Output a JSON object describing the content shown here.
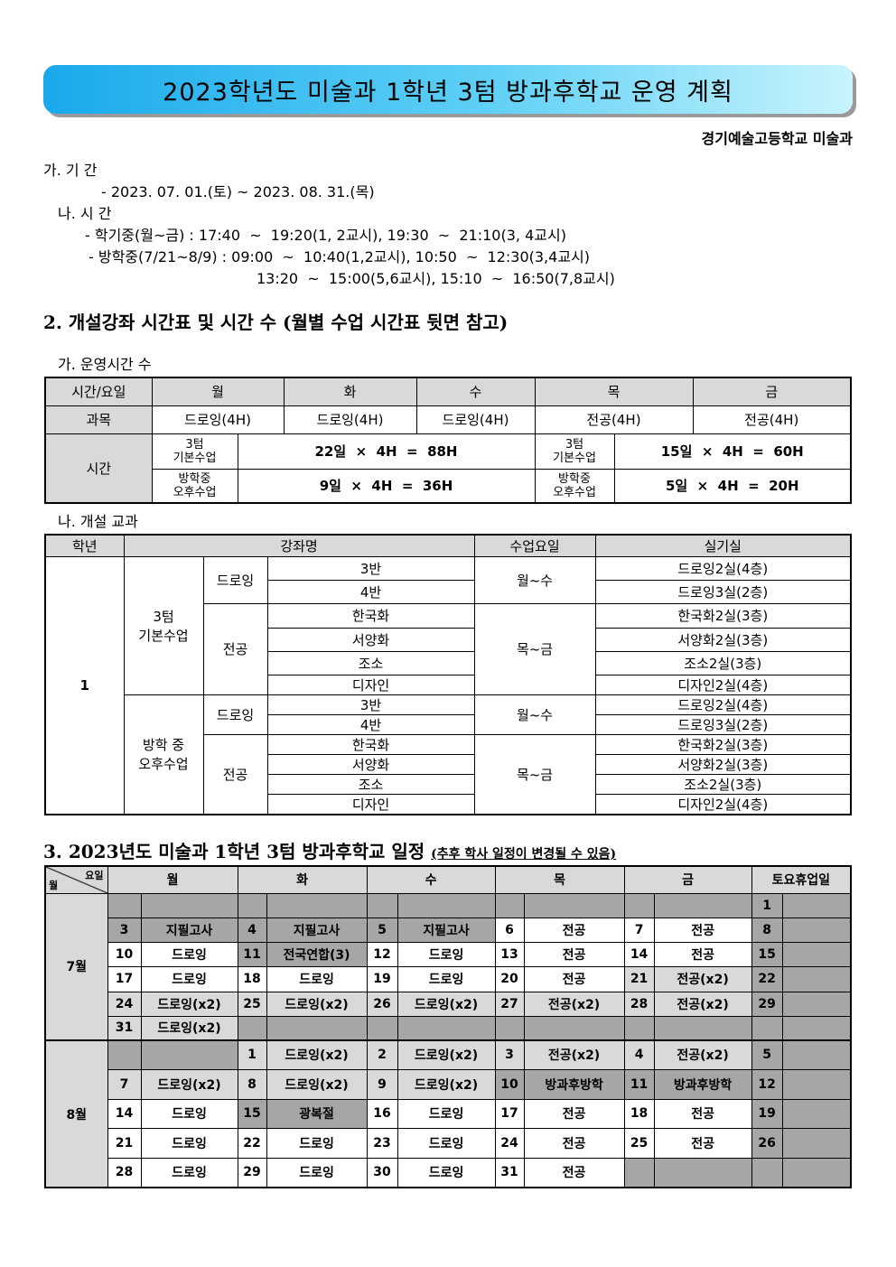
{
  "title": "2023학년도 미술과 1학년 3텀 방과후학교 운영 계획",
  "school": "경기예술고등학교 미술과",
  "sec1": {
    "period_head": "가. 기 간",
    "period": "- 2023. 07. 01.(토) ~ 2023. 08. 31.(목)",
    "time_head": "나. 시 간",
    "time1": "- 학기중(월~금) : 17:40  ~  19:20(1, 2교시), 19:30  ~  21:10(3, 4교시)",
    "time2": "- 방학중(7/21~8/9) : 09:00  ~  10:40(1,2교시), 10:50  ~  12:30(3,4교시)",
    "time3": "13:20  ~  15:00(5,6교시), 15:10  ~  16:50(7,8교시)"
  },
  "sec2": {
    "heading": "2. 개설강좌 시간표 및 시간 수 (월별 수업 시간표 뒷면 참고)",
    "sub_a": "가. 운영시간 수",
    "hours": {
      "header": [
        "시간/요일",
        "월",
        "화",
        "수",
        "목",
        "금"
      ],
      "subject_label": "과목",
      "subjects": [
        "드로잉(4H)",
        "드로잉(4H)",
        "드로잉(4H)",
        "전공(4H)",
        "전공(4H)"
      ],
      "time_label": "시간",
      "basic_label": [
        "3텀",
        "기본수업"
      ],
      "vac_label": [
        "방학중",
        "오후수업"
      ],
      "drawing_basic": "22일  ×  4H  =  88H",
      "drawing_vac": "9일  ×  4H  =  36H",
      "major_basic": "15일  ×  4H  =  60H",
      "major_vac": "5일  ×  4H  =  20H"
    },
    "sub_b": "나. 개설 교과",
    "courses": {
      "header": [
        "학년",
        "강좌명",
        "수업요일",
        "실기실"
      ],
      "grade": "1",
      "basic_label": [
        "3텀",
        "기본수업"
      ],
      "vac_label": [
        "방학 중",
        "오후수업"
      ],
      "drawing": "드로잉",
      "major": "전공",
      "draw_days": "월~수",
      "major_days": "목~금",
      "basic_rows": [
        [
          "3반",
          "드로잉2실(4층)"
        ],
        [
          "4반",
          "드로잉3실(2층)"
        ],
        [
          "한국화",
          "한국화2실(3층)"
        ],
        [
          "서양화",
          "서양화2실(3층)"
        ],
        [
          "조소",
          "조소2실(3층)"
        ],
        [
          "디자인",
          "디자인2실(4층)"
        ]
      ],
      "vac_rows": [
        [
          "3반",
          "드로잉2실(4층)"
        ],
        [
          "4반",
          "드로잉3실(2층)"
        ],
        [
          "한국화",
          "한국화2실(3층)"
        ],
        [
          "서양화",
          "서양화2실(3층)"
        ],
        [
          "조소",
          "조소2실(3층)"
        ],
        [
          "디자인",
          "디자인2실(4층)"
        ]
      ]
    }
  },
  "sec3": {
    "heading": "3. 2023년도 미술과 1학년 3텀 방과후학교 일정",
    "note": "(추후 학사 일정이 변경될 수 있음)",
    "corner_day": "요일",
    "corner_month": "월",
    "days": [
      "월",
      "화",
      "수",
      "목",
      "금",
      "토요휴업일"
    ],
    "months": [
      {
        "name": "7월",
        "rows": [
          [
            [
              "",
              "",
              "dark"
            ],
            [
              "",
              "",
              "dark"
            ],
            [
              "",
              "",
              "dark"
            ],
            [
              "",
              "",
              "dark"
            ],
            [
              "",
              "",
              "dark"
            ],
            [
              "1",
              "",
              "dark"
            ]
          ],
          [
            [
              "3",
              "지필고사",
              "dark"
            ],
            [
              "4",
              "지필고사",
              "dark"
            ],
            [
              "5",
              "지필고사",
              "dark"
            ],
            [
              "6",
              "전공",
              "none"
            ],
            [
              "7",
              "전공",
              "none"
            ],
            [
              "8",
              "",
              "dark"
            ]
          ],
          [
            [
              "10",
              "드로잉",
              "none"
            ],
            [
              "11",
              "전국연합(3)",
              "dark"
            ],
            [
              "12",
              "드로잉",
              "none"
            ],
            [
              "13",
              "전공",
              "none"
            ],
            [
              "14",
              "전공",
              "none"
            ],
            [
              "15",
              "",
              "dark"
            ]
          ],
          [
            [
              "17",
              "드로잉",
              "none"
            ],
            [
              "18",
              "드로잉",
              "none"
            ],
            [
              "19",
              "드로잉",
              "none"
            ],
            [
              "20",
              "전공",
              "none"
            ],
            [
              "21",
              "전공(x2)",
              "light"
            ],
            [
              "22",
              "",
              "dark"
            ]
          ],
          [
            [
              "24",
              "드로잉(x2)",
              "light"
            ],
            [
              "25",
              "드로잉(x2)",
              "light"
            ],
            [
              "26",
              "드로잉(x2)",
              "light"
            ],
            [
              "27",
              "전공(x2)",
              "light"
            ],
            [
              "28",
              "전공(x2)",
              "light"
            ],
            [
              "29",
              "",
              "dark"
            ]
          ],
          [
            [
              "31",
              "드로잉(x2)",
              "light"
            ],
            [
              "",
              "",
              "dark"
            ],
            [
              "",
              "",
              "dark"
            ],
            [
              "",
              "",
              "dark"
            ],
            [
              "",
              "",
              "dark"
            ],
            [
              "",
              "",
              "dark"
            ]
          ]
        ]
      },
      {
        "name": "8월",
        "rows": [
          [
            [
              "",
              "",
              "dark"
            ],
            [
              "1",
              "드로잉(x2)",
              "light"
            ],
            [
              "2",
              "드로잉(x2)",
              "light"
            ],
            [
              "3",
              "전공(x2)",
              "light"
            ],
            [
              "4",
              "전공(x2)",
              "light"
            ],
            [
              "5",
              "",
              "dark"
            ]
          ],
          [
            [
              "7",
              "드로잉(x2)",
              "light"
            ],
            [
              "8",
              "드로잉(x2)",
              "light"
            ],
            [
              "9",
              "드로잉(x2)",
              "light"
            ],
            [
              "10",
              "방과후방학",
              "dark"
            ],
            [
              "11",
              "방과후방학",
              "dark"
            ],
            [
              "12",
              "",
              "dark"
            ]
          ],
          [
            [
              "14",
              "드로잉",
              "none"
            ],
            [
              "15",
              "광복절",
              "dark"
            ],
            [
              "16",
              "드로잉",
              "none"
            ],
            [
              "17",
              "전공",
              "none"
            ],
            [
              "18",
              "전공",
              "none"
            ],
            [
              "19",
              "",
              "dark"
            ]
          ],
          [
            [
              "21",
              "드로잉",
              "none"
            ],
            [
              "22",
              "드로잉",
              "none"
            ],
            [
              "23",
              "드로잉",
              "none"
            ],
            [
              "24",
              "전공",
              "none"
            ],
            [
              "25",
              "전공",
              "none"
            ],
            [
              "26",
              "",
              "dark"
            ]
          ],
          [
            [
              "28",
              "드로잉",
              "none"
            ],
            [
              "29",
              "드로잉",
              "none"
            ],
            [
              "30",
              "드로잉",
              "none"
            ],
            [
              "31",
              "전공",
              "none"
            ],
            [
              "",
              "",
              "dark"
            ],
            [
              "",
              "",
              "dark"
            ]
          ]
        ]
      }
    ]
  }
}
